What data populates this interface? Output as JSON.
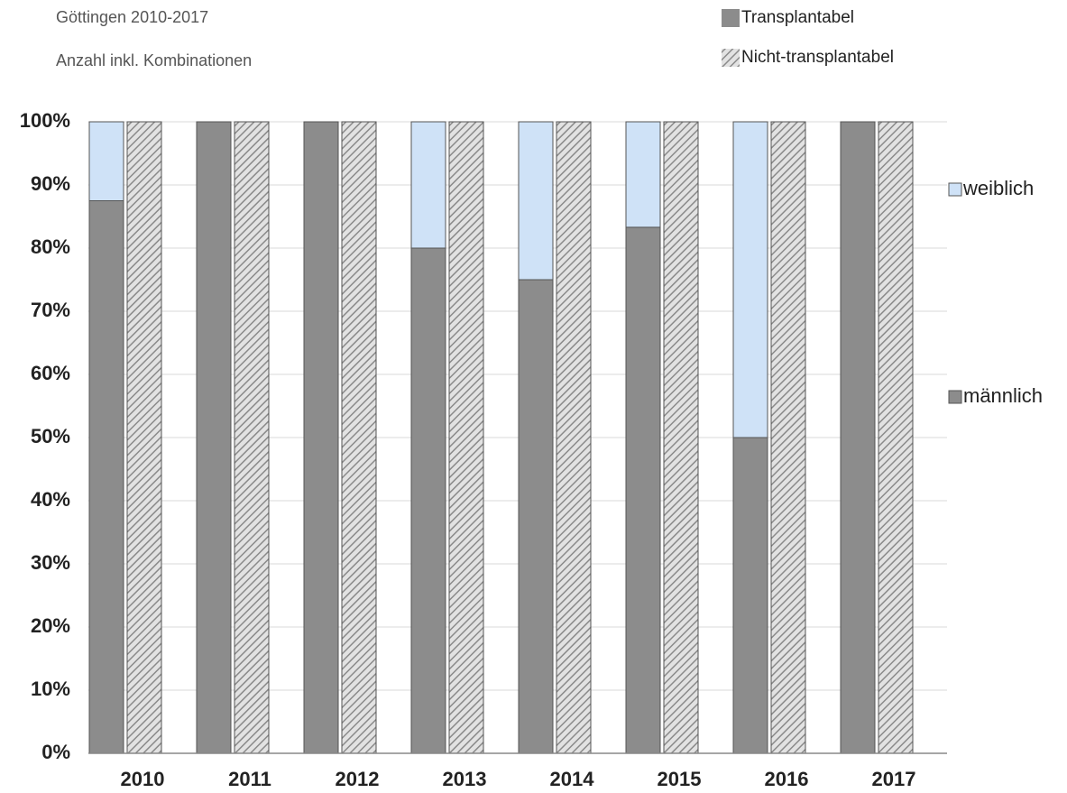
{
  "chart_data": {
    "type": "grouped-stacked-bar",
    "subtitle": "Göttingen 2010-2017",
    "note": "Anzahl inkl. Kombinationen",
    "categories": [
      "2010",
      "2011",
      "2012",
      "2013",
      "2014",
      "2015",
      "2016",
      "2017"
    ],
    "groups": [
      {
        "name": "Transplantabel",
        "pattern": "solid"
      },
      {
        "name": "Nicht-transplantabel",
        "pattern": "hatch"
      }
    ],
    "series": [
      {
        "name": "männlich",
        "color": "#8c8c8c",
        "values": [
          [
            87.5,
            100,
            100,
            80,
            75,
            83.3,
            50,
            100
          ],
          [
            100,
            100,
            100,
            100,
            100,
            100,
            100,
            100
          ]
        ]
      },
      {
        "name": "weiblich",
        "color": "#cfe2f7",
        "values": [
          [
            12.5,
            0,
            0,
            20,
            25,
            16.7,
            50,
            0
          ],
          [
            0,
            0,
            0,
            0,
            0,
            0,
            0,
            0
          ]
        ]
      }
    ],
    "ylim": [
      0,
      100
    ],
    "yticks": [
      {
        "value": 0,
        "label": "0%"
      },
      {
        "value": 10,
        "label": "10%"
      },
      {
        "value": 20,
        "label": "20%"
      },
      {
        "value": 30,
        "label": "30%"
      },
      {
        "value": 40,
        "label": "40%"
      },
      {
        "value": 50,
        "label": "50%"
      },
      {
        "value": 60,
        "label": "60%"
      },
      {
        "value": 70,
        "label": "70%"
      },
      {
        "value": 80,
        "label": "80%"
      },
      {
        "value": 90,
        "label": "90%"
      },
      {
        "value": 100,
        "label": "100%"
      }
    ],
    "grid": true
  }
}
